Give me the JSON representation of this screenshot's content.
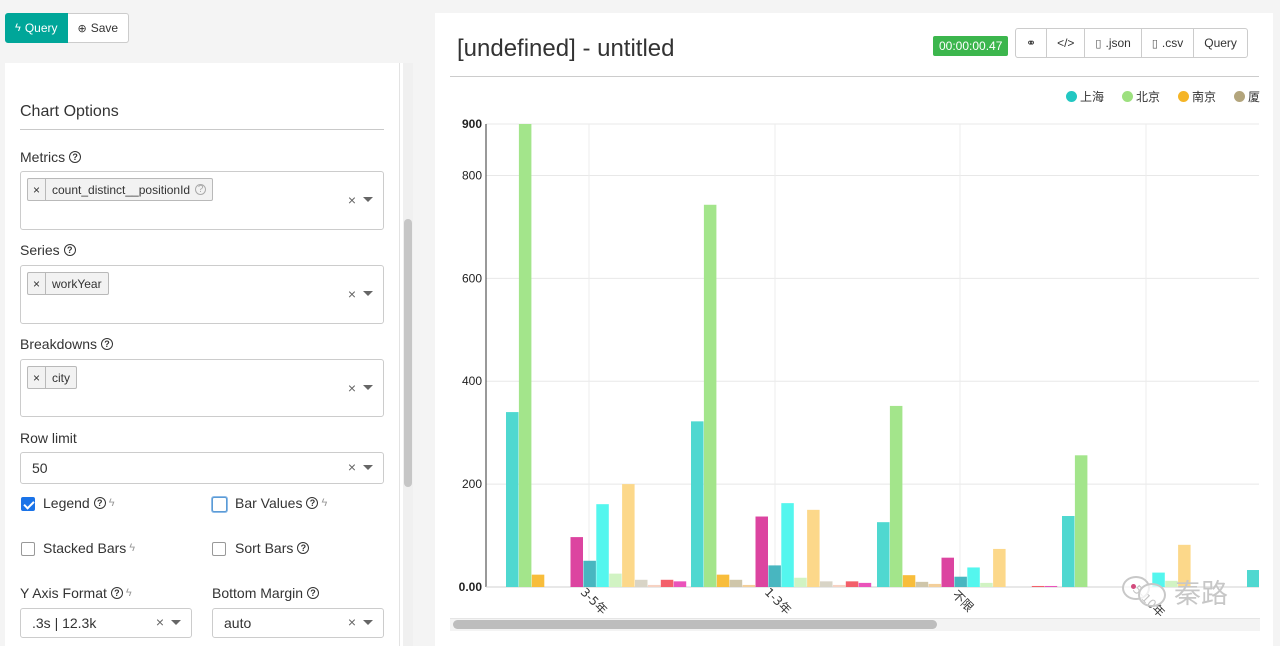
{
  "toolbar": {
    "query_label": "Query",
    "save_label": "Save"
  },
  "chart_options": {
    "title": "Chart Options",
    "metrics": {
      "label": "Metrics",
      "tags": [
        "count_distinct__positionId"
      ]
    },
    "series": {
      "label": "Series",
      "tags": [
        "workYear"
      ]
    },
    "breakdowns": {
      "label": "Breakdowns",
      "tags": [
        "city"
      ]
    },
    "row_limit": {
      "label": "Row limit",
      "value": "50"
    },
    "legend": {
      "label": "Legend",
      "checked": true
    },
    "bar_values": {
      "label": "Bar Values",
      "checked": false
    },
    "stacked_bars": {
      "label": "Stacked Bars",
      "checked": false
    },
    "sort_bars": {
      "label": "Sort Bars",
      "checked": false
    },
    "y_axis_format": {
      "label": "Y Axis Format",
      "value": ".3s | 12.3k"
    },
    "bottom_margin": {
      "label": "Bottom Margin",
      "value": "auto"
    },
    "clear_symbol": "×"
  },
  "header": {
    "title": "[undefined] - untitled",
    "timer": "00:00:00.47",
    "actions": [
      ".json",
      ".csv",
      "Query"
    ]
  },
  "legend_items": [
    {
      "name": "上海",
      "color": "#22c7c2"
    },
    {
      "name": "北京",
      "color": "#9de07f"
    },
    {
      "name": "南京",
      "color": "#f5b527"
    },
    {
      "name": "厦",
      "color": "#b3a57c"
    }
  ],
  "watermark": {
    "text": "秦路"
  },
  "chart_data": {
    "type": "bar",
    "categories": [
      "3-5年",
      "1-3年",
      "不限",
      "5-10年",
      ""
    ],
    "ylim": [
      0,
      900
    ],
    "yticks": [
      0,
      200,
      400,
      600,
      800,
      900
    ],
    "ytick_labels": [
      "0.00",
      "200",
      "400",
      "600",
      "800",
      "900"
    ],
    "series": [
      {
        "name": "上海",
        "color": "#4fd8d0",
        "values": [
          340,
          322,
          126,
          138,
          33
        ]
      },
      {
        "name": "北京",
        "color": "#a3e58b",
        "values": [
          900,
          743,
          352,
          256,
          0
        ]
      },
      {
        "name": "南京",
        "color": "#f8bd3b",
        "values": [
          24,
          24,
          23,
          0,
          0
        ]
      },
      {
        "name": "厦",
        "color": "#cfc6aa",
        "values": [
          0,
          14,
          10,
          0,
          0
        ]
      },
      {
        "color": "#f3cf9a",
        "values": [
          0,
          4,
          6,
          0,
          0
        ]
      },
      {
        "color": "#dc44a0",
        "values": [
          97,
          137,
          57,
          0,
          0
        ]
      },
      {
        "color": "#48b6c0",
        "values": [
          51,
          42,
          20,
          0,
          0
        ]
      },
      {
        "color": "#54f6ee",
        "values": [
          161,
          163,
          38,
          28,
          0
        ]
      },
      {
        "color": "#d1f3c3",
        "values": [
          26,
          18,
          8,
          12,
          0
        ]
      },
      {
        "color": "#fcd88a",
        "values": [
          200,
          150,
          74,
          82,
          0
        ]
      },
      {
        "color": "#d8d4c6",
        "values": [
          14,
          11,
          0,
          0,
          0
        ]
      },
      {
        "color": "#f6d2c2",
        "values": [
          4,
          4,
          0,
          0,
          0
        ]
      },
      {
        "color": "#f35f6a",
        "values": [
          14,
          11,
          2,
          0,
          0
        ]
      },
      {
        "color": "#ea53ba",
        "values": [
          11,
          8,
          2,
          0,
          0
        ]
      }
    ]
  }
}
